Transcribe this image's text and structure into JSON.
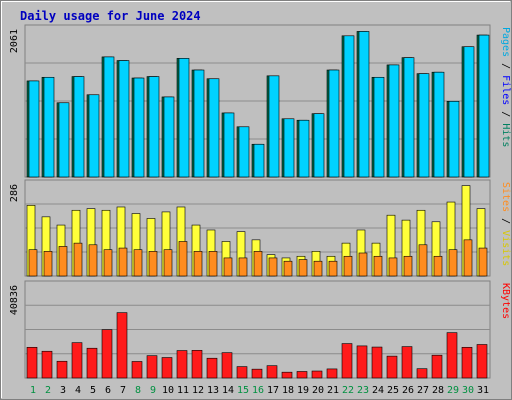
{
  "colors": {
    "frame_bg": "#c0c0c0",
    "panel_bg": "#bfbfbf",
    "border_dark": "#808080",
    "border_light": "#ffffff",
    "grid": "#8c8c8c",
    "title_text": "#0000c0",
    "hits": "#006e4e",
    "files": "#00d2ff",
    "pages": "#005a8a",
    "visits": "#ffff3a",
    "sites": "#ff8c1e",
    "kbytes": "#ff1a1a",
    "weekend_day": "#009040",
    "weekday_day": "#000000"
  },
  "chart_data": {
    "type": "bar",
    "title": "Daily usage for June 2024",
    "days": [
      "1",
      "2",
      "3",
      "4",
      "5",
      "6",
      "7",
      "8",
      "9",
      "10",
      "11",
      "12",
      "13",
      "14",
      "15",
      "16",
      "17",
      "18",
      "19",
      "20",
      "21",
      "22",
      "23",
      "24",
      "25",
      "26",
      "27",
      "28",
      "29",
      "30",
      "31"
    ],
    "weekend_days": [
      "1",
      "2",
      "8",
      "9",
      "15",
      "16",
      "22",
      "23",
      "29",
      "30"
    ],
    "panels": [
      {
        "id": "top",
        "max_label": "2061",
        "ymax": 2061,
        "right_labels": [
          {
            "text": "Pages",
            "color_key": "pages_label"
          },
          {
            "text": " / ",
            "color_key": "sep"
          },
          {
            "text": "Files",
            "color_key": "files_label"
          },
          {
            "text": " / ",
            "color_key": "sep"
          },
          {
            "text": "Hits",
            "color_key": "hits_label"
          }
        ],
        "series": [
          {
            "name": "Hits",
            "color_key": "hits",
            "values": [
              1320,
              1370,
              1020,
              1380,
              1130,
              1650,
              1600,
              1360,
              1380,
              1100,
              1630,
              1470,
              1350,
              880,
              690,
              450,
              1390,
              800,
              780,
              870,
              1470,
              1940,
              2000,
              1370,
              1540,
              1640,
              1420,
              1440,
              1040,
              1790,
              1950
            ]
          },
          {
            "name": "Files",
            "color_key": "files",
            "values": [
              1320,
              1370,
              1020,
              1380,
              1130,
              1650,
              1600,
              1360,
              1380,
              1100,
              1630,
              1470,
              1350,
              880,
              690,
              450,
              1390,
              800,
              780,
              870,
              1470,
              1940,
              2000,
              1370,
              1540,
              1640,
              1420,
              1440,
              1040,
              1790,
              1950
            ]
          },
          {
            "name": "Pages",
            "color_key": "pages",
            "values": [
              0,
              0,
              0,
              0,
              0,
              0,
              0,
              0,
              0,
              0,
              0,
              0,
              0,
              0,
              0,
              0,
              0,
              0,
              0,
              0,
              0,
              0,
              0,
              0,
              0,
              0,
              0,
              0,
              0,
              0,
              0
            ]
          }
        ]
      },
      {
        "id": "middle",
        "max_label": "286",
        "ymax": 286,
        "right_labels": [
          {
            "text": "Sites",
            "color_key": "sites_label"
          },
          {
            "text": " / ",
            "color_key": "sep"
          },
          {
            "text": "Visits",
            "color_key": "visits_label"
          }
        ],
        "series": [
          {
            "name": "Visits",
            "color_key": "visits",
            "values": [
              215,
              180,
              155,
              200,
              205,
              200,
              210,
              190,
              175,
              195,
              210,
              155,
              140,
              105,
              135,
              110,
              65,
              55,
              60,
              75,
              60,
              100,
              140,
              100,
              185,
              170,
              200,
              165,
              225,
              275,
              205
            ]
          },
          {
            "name": "Sites",
            "color_key": "sites",
            "values": [
              80,
              75,
              90,
              100,
              95,
              80,
              85,
              80,
              75,
              80,
              105,
              75,
              75,
              55,
              55,
              75,
              55,
              45,
              50,
              45,
              45,
              60,
              70,
              60,
              55,
              60,
              95,
              60,
              80,
              110,
              85
            ]
          }
        ]
      },
      {
        "id": "bottom",
        "max_label": "40836",
        "ymax": 40836,
        "right_labels": [
          {
            "text": "KBytes",
            "color_key": "kbytes"
          }
        ],
        "series": [
          {
            "name": "KBytes",
            "color_key": "kbytes",
            "values": [
              13200,
              11500,
              7200,
              15200,
              12800,
              20800,
              28100,
              7100,
              9600,
              8800,
              11800,
              11900,
              8500,
              10900,
              4900,
              3800,
              5300,
              2500,
              2800,
              3000,
              3900,
              14800,
              13800,
              13300,
              9400,
              13500,
              4000,
              9800,
              19500,
              13200,
              14400
            ]
          }
        ]
      }
    ]
  }
}
